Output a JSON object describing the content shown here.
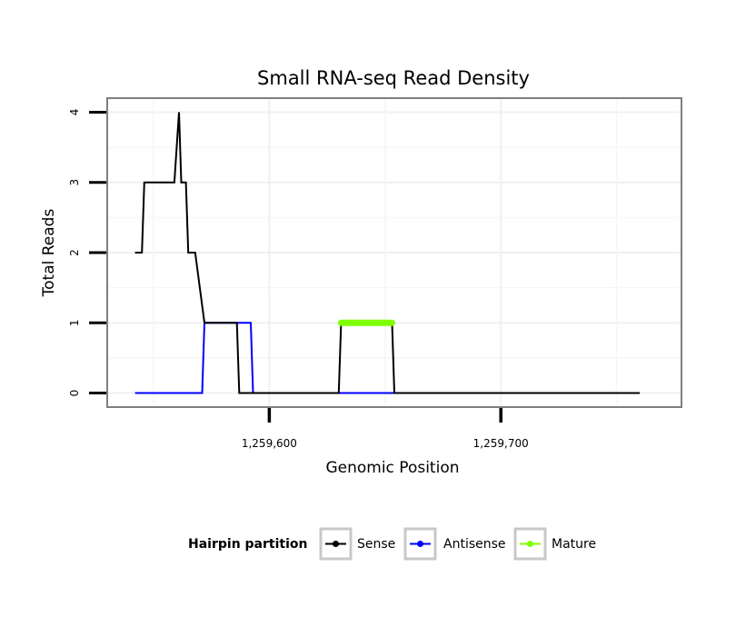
{
  "chart_data": {
    "type": "line",
    "title": "Small RNA-seq Read Density",
    "xlabel": "Genomic Position",
    "ylabel": "Total Reads",
    "xlim": [
      1259530,
      1259778
    ],
    "ylim": [
      -0.2,
      4.2
    ],
    "x_ticks": [
      1259600,
      1259700
    ],
    "x_tick_labels": [
      "1,259,600",
      "1,259,700"
    ],
    "y_ticks": [
      0,
      1,
      2,
      3,
      4
    ],
    "y_tick_labels": [
      "0",
      "1",
      "2",
      "3",
      "4"
    ],
    "grid": true,
    "legend": {
      "title": "Hairpin partition",
      "position": "bottom",
      "entries": [
        "Sense",
        "Antisense",
        "Mature"
      ]
    },
    "series": [
      {
        "name": "Sense",
        "color": "#000000",
        "x": [
          1259542,
          1259545,
          1259546,
          1259546.5,
          1259547,
          1259559,
          1259561,
          1259562,
          1259564,
          1259565,
          1259565.5,
          1259567,
          1259568,
          1259572,
          1259573,
          1259586,
          1259587,
          1259630,
          1259631,
          1259653,
          1259654,
          1259760
        ],
        "values": [
          2,
          2,
          3,
          3,
          3,
          3,
          4,
          3,
          3,
          2,
          2,
          2,
          2,
          1,
          1,
          1,
          0,
          0,
          1,
          1,
          0,
          0
        ]
      },
      {
        "name": "Antisense",
        "color": "#0000ff",
        "x": [
          1259542,
          1259571,
          1259572,
          1259592,
          1259593,
          1259760
        ],
        "values": [
          0,
          0,
          1,
          1,
          0,
          0
        ]
      },
      {
        "name": "Mature",
        "color": "#7fff00",
        "x": [
          1259631,
          1259653
        ],
        "values": [
          1,
          1
        ]
      }
    ]
  }
}
